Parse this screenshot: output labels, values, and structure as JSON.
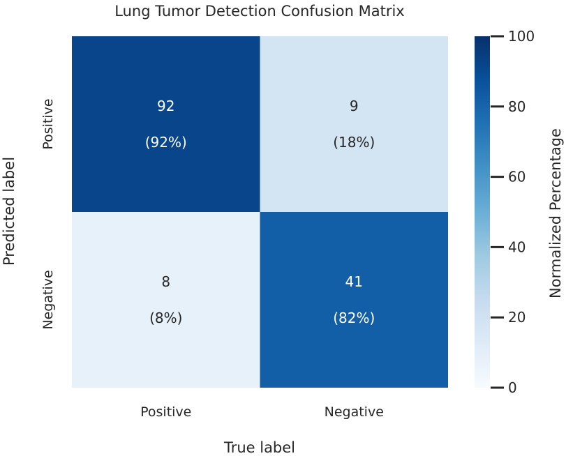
{
  "chart_data": {
    "type": "heatmap",
    "title": "Lung Tumor Detection Confusion Matrix",
    "xlabel": "True label",
    "ylabel": "Predicted label",
    "x_categories": [
      "Positive",
      "Negative"
    ],
    "y_categories": [
      "Positive",
      "Negative"
    ],
    "counts": [
      [
        92,
        9
      ],
      [
        8,
        41
      ]
    ],
    "percent_labels": [
      [
        "(92%)",
        "(18%)"
      ],
      [
        "(8%)",
        "(82%)"
      ]
    ],
    "color_values": [
      [
        92,
        18
      ],
      [
        8,
        82
      ]
    ],
    "colorbar": {
      "label": "Normalized Percentage",
      "range": [
        0,
        100
      ],
      "ticks": [
        "0",
        "20",
        "40",
        "60",
        "80",
        "100"
      ],
      "colormap": "Blues"
    }
  }
}
